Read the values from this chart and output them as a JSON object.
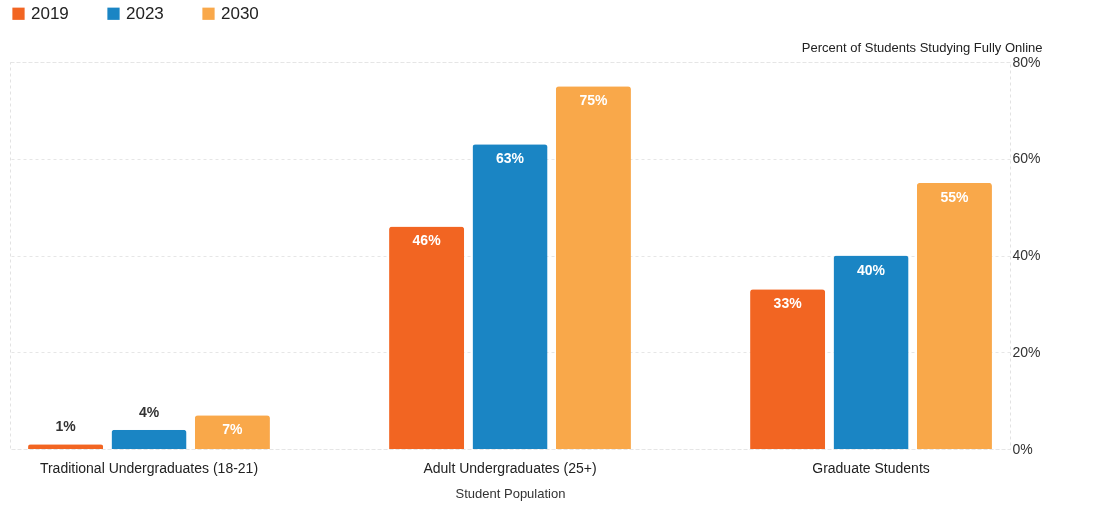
{
  "chart_data": {
    "type": "bar",
    "xlabel": "Student Population",
    "ylabel": "Percent of Students Studying Fully Online",
    "categories": [
      "Traditional Undergraduates (18-21)",
      "Adult Undergraduates (25+)",
      "Graduate Students"
    ],
    "series": [
      {
        "name": "2019",
        "color": "#f26522",
        "values": [
          1,
          46,
          33
        ],
        "value_labels": [
          "1%",
          "46%",
          "33%"
        ]
      },
      {
        "name": "2023",
        "color": "#1a85c4",
        "values": [
          4,
          63,
          40
        ],
        "value_labels": [
          "4%",
          "63%",
          "40%"
        ]
      },
      {
        "name": "2030",
        "color": "#f9a84a",
        "values": [
          7,
          75,
          55
        ],
        "value_labels": [
          "7%",
          "75%",
          "55%"
        ]
      }
    ],
    "ylim": [
      0,
      80
    ],
    "yticks": [
      {
        "value": 0,
        "label": "0%"
      },
      {
        "value": 20,
        "label": "20%"
      },
      {
        "value": 40,
        "label": "40%"
      },
      {
        "value": 60,
        "label": "60%"
      },
      {
        "value": 80,
        "label": "80%"
      }
    ],
    "grid": "y",
    "legend": "top left"
  }
}
